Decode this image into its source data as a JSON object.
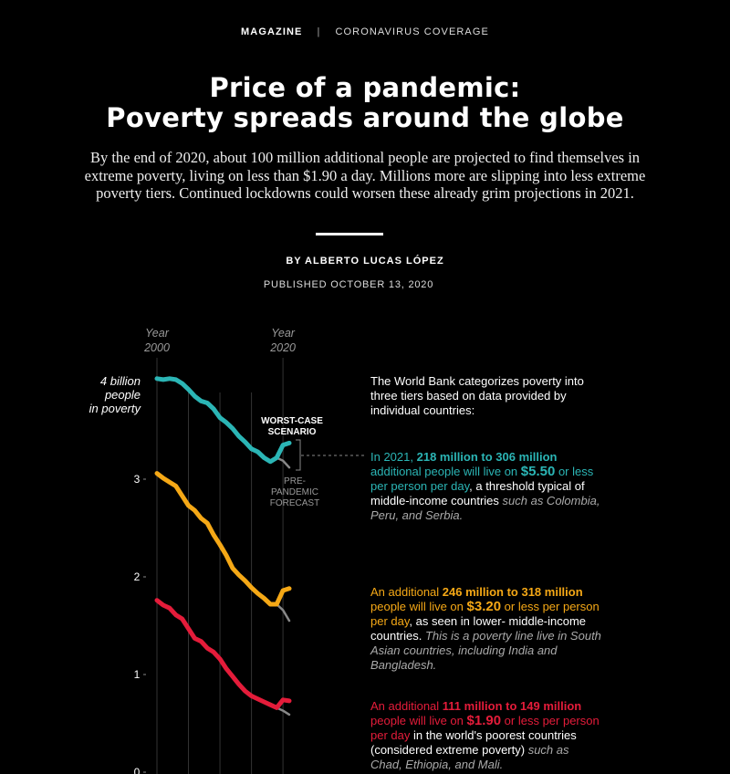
{
  "nav": {
    "section": "MAGAZINE",
    "separator": "|",
    "coverage": "CORONAVIRUS COVERAGE"
  },
  "title_line1": "Price of a pandemic:",
  "title_line2": "Poverty spreads around the globe",
  "intro": "By the end of 2020, about 100 million additional people are projected to find themselves in extreme poverty, living on less than $1.90 a day. Millions more are slipping into less extreme poverty tiers. Continued lockdowns could worsen these already grim projections in 2021.",
  "byline": "BY ALBERTO LUCAS LÓPEZ",
  "published": "PUBLISHED OCTOBER 13, 2020",
  "annotations": {
    "intro": "The World Bank categorizes poverty into three tiers based on data provided by individual countries:",
    "teal": {
      "p1": "In 2021, ",
      "range": "218 million to 306 million",
      "p2": " additional people will live on ",
      "amount": "$5.50",
      "p3": " or less per person per day",
      "p4": ", a threshold typical of middle-income countries ",
      "italic": "such as Colombia, Peru, and Serbia."
    },
    "orange": {
      "p1": "An additional ",
      "range": "246 million to 318 million",
      "p2": " people will live on ",
      "amount": "$3.20",
      "p3": " or less per person per day",
      "p4": ", as seen in lower- middle-income countries. ",
      "italic": "This is a poverty line live in South Asian countries, including India and Bangladesh."
    },
    "red": {
      "p1": "An additional ",
      "range": "111 million to 149 million",
      "p2": " people will live on ",
      "amount": "$1.90",
      "p3": " or less per person per day",
      "p4": " in the world's poorest countries (considered extreme poverty) ",
      "italic": "such as Chad, Ethiopia, and Mali."
    }
  },
  "chart_data": {
    "type": "line",
    "x_ticks": [
      {
        "top": "Year",
        "bottom": "2000"
      },
      {
        "top": "Year",
        "bottom": "2020"
      }
    ],
    "y_axis_label": [
      "4 billion",
      "people",
      "in poverty"
    ],
    "y_ticks": [
      "3",
      "2",
      "1",
      "0"
    ],
    "ylim": [
      0,
      4
    ],
    "xlim": [
      2000,
      2021
    ],
    "labels": {
      "worst_case": [
        "WORST-CASE",
        "SCENARIO"
      ],
      "pre_pandemic": [
        "PRE-",
        "PANDEMIC",
        "FORECAST"
      ]
    },
    "colors": {
      "teal": "#2bb5b5",
      "orange": "#f5a816",
      "red": "#e41c3a",
      "forecast": "#888888"
    },
    "series": [
      {
        "color_key": "teal",
        "x": [
          2000,
          2001,
          2002,
          2003,
          2004,
          2005,
          2006,
          2007,
          2008,
          2009,
          2010,
          2011,
          2012,
          2013,
          2014,
          2015,
          2016,
          2017,
          2018,
          2019,
          2020,
          2021
        ],
        "values": [
          4.03,
          4.02,
          4.03,
          4.02,
          3.98,
          3.92,
          3.85,
          3.8,
          3.78,
          3.72,
          3.63,
          3.58,
          3.52,
          3.44,
          3.38,
          3.31,
          3.28,
          3.22,
          3.18,
          3.22,
          3.35,
          3.37
        ],
        "forecast": [
          [
            2019,
            3.22
          ],
          [
            2020,
            3.19
          ],
          [
            2021,
            3.12
          ]
        ]
      },
      {
        "color_key": "orange",
        "x": [
          2000,
          2001,
          2002,
          2003,
          2004,
          2005,
          2006,
          2007,
          2008,
          2009,
          2010,
          2011,
          2012,
          2013,
          2014,
          2015,
          2016,
          2017,
          2018,
          2019,
          2020,
          2021
        ],
        "values": [
          3.06,
          3.01,
          2.97,
          2.93,
          2.83,
          2.73,
          2.68,
          2.6,
          2.55,
          2.43,
          2.33,
          2.22,
          2.09,
          2.02,
          1.96,
          1.89,
          1.83,
          1.78,
          1.72,
          1.72,
          1.86,
          1.88
        ],
        "forecast": [
          [
            2019,
            1.72
          ],
          [
            2020,
            1.66
          ],
          [
            2021,
            1.55
          ]
        ]
      },
      {
        "color_key": "red",
        "x": [
          2000,
          2001,
          2002,
          2003,
          2004,
          2005,
          2006,
          2007,
          2008,
          2009,
          2010,
          2011,
          2012,
          2013,
          2014,
          2015,
          2016,
          2017,
          2018,
          2019,
          2020,
          2021
        ],
        "values": [
          1.76,
          1.71,
          1.68,
          1.61,
          1.57,
          1.47,
          1.37,
          1.34,
          1.27,
          1.23,
          1.16,
          1.06,
          0.98,
          0.9,
          0.83,
          0.78,
          0.75,
          0.72,
          0.69,
          0.66,
          0.74,
          0.73
        ],
        "forecast": [
          [
            2019,
            0.66
          ],
          [
            2020,
            0.63
          ],
          [
            2021,
            0.59
          ]
        ]
      }
    ]
  }
}
